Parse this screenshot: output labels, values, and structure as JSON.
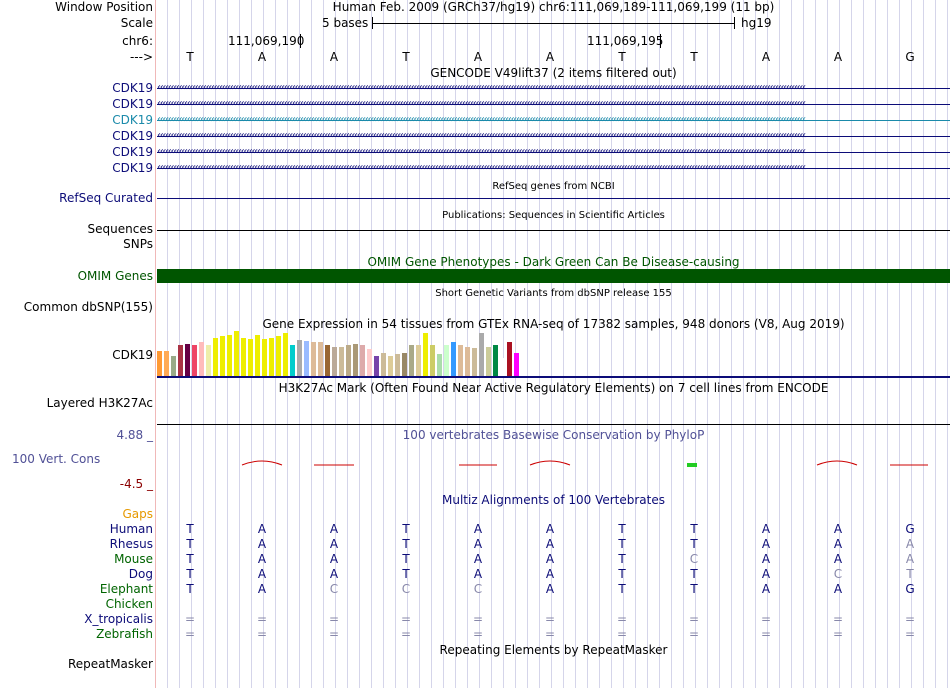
{
  "header": {
    "window_position_label": "Window Position",
    "window_position_value": "Human Feb. 2009 (GRCh37/hg19)   chr6:111,069,189-111,069,199 (11 bp)",
    "scale_label": "Scale",
    "scale_value": "5 bases",
    "scale_assembly": "hg19",
    "chrom_label": "chr6:",
    "coord_1": "111,069,190",
    "coord_2": "111,069,195",
    "strand_label": "--->"
  },
  "bases": [
    "T",
    "A",
    "A",
    "T",
    "A",
    "A",
    "T",
    "T",
    "A",
    "A",
    "G"
  ],
  "gencode": {
    "title": "GENCODE V49lift37 (2 items filtered out)",
    "rows": [
      {
        "label": "CDK19",
        "color": "#0c0c78"
      },
      {
        "label": "CDK19",
        "color": "#0c0c78"
      },
      {
        "label": "CDK19",
        "color": "#1a8aaa"
      },
      {
        "label": "CDK19",
        "color": "#0c0c78"
      },
      {
        "label": "CDK19",
        "color": "#0c0c78"
      },
      {
        "label": "CDK19",
        "color": "#0c0c78"
      }
    ]
  },
  "refseq": {
    "title": "RefSeq genes from NCBI",
    "label": "RefSeq Curated"
  },
  "publications": {
    "title": "Publications: Sequences in Scientific Articles",
    "label": "Sequences"
  },
  "snps": {
    "label": "SNPs"
  },
  "omim": {
    "title": "OMIM Gene Phenotypes - Dark Green Can Be Disease-causing",
    "label": "OMIM Genes",
    "color": "#005500"
  },
  "dbsnp": {
    "title": "Short Genetic Variants from dbSNP release 155",
    "label": "Common dbSNP(155)"
  },
  "gtex": {
    "title": "Gene Expression in 54 tissues from GTEx RNA-seq of 17382 samples, 948 donors (V8, Aug 2019)",
    "label": "CDK19",
    "bars": [
      {
        "c": "#ff9933",
        "v": 0.55
      },
      {
        "c": "#ffaa55",
        "v": 0.55
      },
      {
        "c": "#99aa88",
        "v": 0.45
      },
      {
        "c": "#aa3344",
        "v": 0.7
      },
      {
        "c": "#660044",
        "v": 0.72
      },
      {
        "c": "#ee4466",
        "v": 0.7
      },
      {
        "c": "#ffbbbb",
        "v": 0.75
      },
      {
        "c": "#eeeeaa",
        "v": 0.68
      },
      {
        "c": "#eeee00",
        "v": 0.85
      },
      {
        "c": "#eeee00",
        "v": 0.88
      },
      {
        "c": "#eeee00",
        "v": 0.92
      },
      {
        "c": "#eeee00",
        "v": 1.0
      },
      {
        "c": "#eeee00",
        "v": 0.85
      },
      {
        "c": "#eeee00",
        "v": 0.82
      },
      {
        "c": "#eeee00",
        "v": 0.9
      },
      {
        "c": "#eeee00",
        "v": 0.82
      },
      {
        "c": "#eeee00",
        "v": 0.85
      },
      {
        "c": "#eeee00",
        "v": 0.88
      },
      {
        "c": "#eeee00",
        "v": 0.95
      },
      {
        "c": "#00cccc",
        "v": 0.68
      },
      {
        "c": "#aaaaaa",
        "v": 0.8
      },
      {
        "c": "#99bbff",
        "v": 0.78
      },
      {
        "c": "#ddbb99",
        "v": 0.75
      },
      {
        "c": "#ddbb99",
        "v": 0.75
      },
      {
        "c": "#996633",
        "v": 0.68
      },
      {
        "c": "#bbaa99",
        "v": 0.65
      },
      {
        "c": "#ccbb99",
        "v": 0.65
      },
      {
        "c": "#bbaa88",
        "v": 0.7
      },
      {
        "c": "#aa9977",
        "v": 0.72
      },
      {
        "c": "#ddaaaa",
        "v": 0.68
      },
      {
        "c": "#ffcccc",
        "v": 0.6
      },
      {
        "c": "#7744aa",
        "v": 0.45
      },
      {
        "c": "#ccbb99",
        "v": 0.5
      },
      {
        "c": "#ddcc99",
        "v": 0.45
      },
      {
        "c": "#ccbb99",
        "v": 0.48
      },
      {
        "c": "#998866",
        "v": 0.5
      },
      {
        "c": "#aaaa88",
        "v": 0.68
      },
      {
        "c": "#ddcc99",
        "v": 0.68
      },
      {
        "c": "#eeee00",
        "v": 0.95
      },
      {
        "c": "#cccc66",
        "v": 0.68
      },
      {
        "c": "#aaddaa",
        "v": 0.48
      },
      {
        "c": "#ccffcc",
        "v": 0.68
      },
      {
        "c": "#3399ff",
        "v": 0.75
      },
      {
        "c": "#ddbb99",
        "v": 0.7
      },
      {
        "c": "#ddbb99",
        "v": 0.65
      },
      {
        "c": "#ccbb99",
        "v": 0.62
      },
      {
        "c": "#aaaaaa",
        "v": 0.95
      },
      {
        "c": "#cccc99",
        "v": 0.65
      },
      {
        "c": "#008844",
        "v": 0.68
      },
      {
        "c": "#ffffff",
        "v": 0.4
      },
      {
        "c": "#aa1122",
        "v": 0.75
      },
      {
        "c": "#ff00ff",
        "v": 0.52
      }
    ]
  },
  "h3k27ac": {
    "title": "H3K27Ac Mark (Often Found Near Active Regulatory Elements) on 7 cell lines from ENCODE",
    "label": "Layered H3K27Ac"
  },
  "cons": {
    "title": "100 vertebrates Basewise Conservation by PhyloP",
    "label": "100 Vert. Cons",
    "max": "4.88 _",
    "min": "-4.5 _",
    "label_color": "#505096",
    "max_color": "#505096",
    "min_color": "#8b0000"
  },
  "multiz": {
    "title": "Multiz Alignments of 100 Vertebrates",
    "gaps_label": "Gaps",
    "species": [
      {
        "name": "Human",
        "color": "#0c0c78",
        "bases": [
          "T",
          "A",
          "A",
          "T",
          "A",
          "A",
          "T",
          "T",
          "A",
          "A",
          "G"
        ]
      },
      {
        "name": "Rhesus",
        "color": "#0c0c78",
        "bases": [
          "T",
          "A",
          "A",
          "T",
          "A",
          "A",
          "T",
          "T",
          "A",
          "A",
          "A"
        ]
      },
      {
        "name": "Mouse",
        "color": "#006400",
        "bases": [
          "T",
          "A",
          "A",
          "T",
          "A",
          "A",
          "T",
          "C",
          "A",
          "A",
          "A"
        ]
      },
      {
        "name": "Dog",
        "color": "#0c0c78",
        "bases": [
          "T",
          "A",
          "A",
          "T",
          "A",
          "A",
          "T",
          "T",
          "A",
          "C",
          "T"
        ]
      },
      {
        "name": "Elephant",
        "color": "#006400",
        "bases": [
          "T",
          "A",
          "C",
          "C",
          "C",
          "A",
          "T",
          "T",
          "A",
          "A",
          "G"
        ]
      },
      {
        "name": "Chicken",
        "color": "#006400",
        "bases": [
          "",
          "",
          "",
          "",
          "",
          "",
          "",
          "",
          "",
          "",
          ""
        ]
      },
      {
        "name": "X_tropicalis",
        "color": "#0c0c78",
        "bases": [
          "=",
          "=",
          "=",
          "=",
          "=",
          "=",
          "=",
          "=",
          "=",
          "=",
          "="
        ]
      },
      {
        "name": "Zebrafish",
        "color": "#006400",
        "bases": [
          "=",
          "=",
          "=",
          "=",
          "=",
          "=",
          "=",
          "=",
          "=",
          "=",
          "="
        ]
      }
    ]
  },
  "repeatmasker": {
    "title": "Repeating Elements by RepeatMasker",
    "label": "RepeatMasker"
  }
}
